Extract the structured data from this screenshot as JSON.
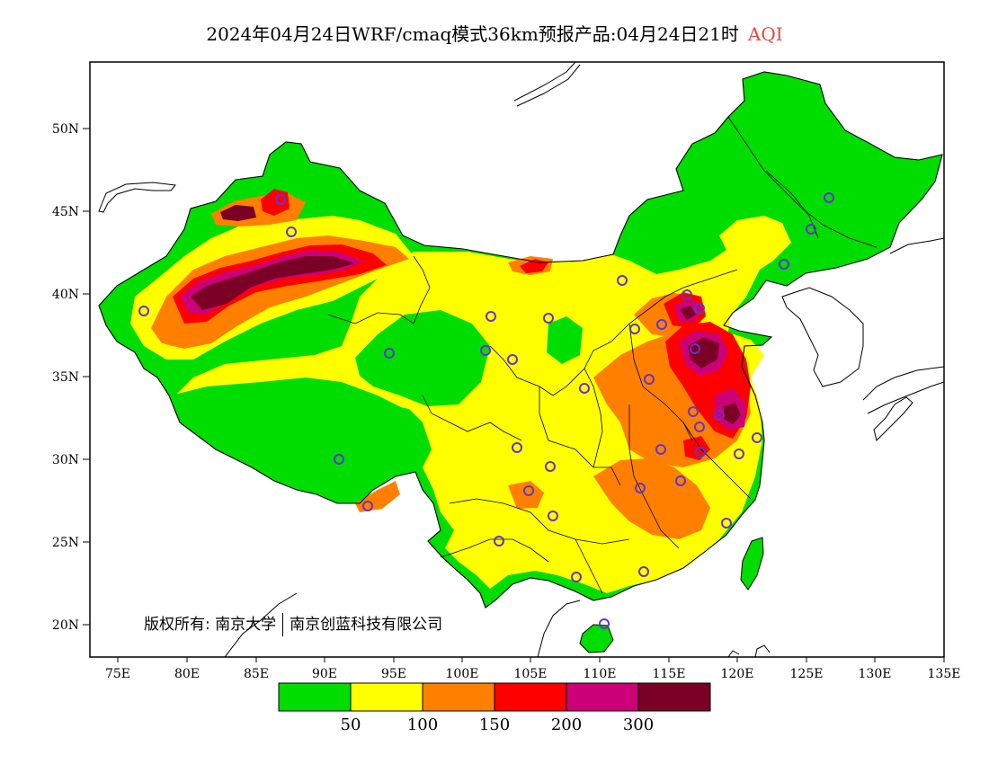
{
  "title": {
    "main": "2024年04月24日WRF/cmaq模式36km预报产品:04月24日21时",
    "variable": "AQI",
    "variable_color": "#e8443c"
  },
  "axes": {
    "lat_ticks": [
      "50N",
      "45N",
      "40N",
      "35N",
      "30N",
      "25N",
      "20N"
    ],
    "lon_ticks": [
      "75E",
      "80E",
      "85E",
      "90E",
      "95E",
      "100E",
      "105E",
      "110E",
      "115E",
      "120E",
      "125E",
      "130E",
      "135E"
    ]
  },
  "colorbar": {
    "colors": [
      "#00dd00",
      "#ffff00",
      "#ff8000",
      "#ff0000",
      "#cc0077",
      "#7a0025"
    ],
    "labels": [
      "50",
      "100",
      "150",
      "200",
      "300"
    ]
  },
  "copyright": {
    "part1": "版权所有: 南京大学",
    "part2": "南京创蓝科技有限公司"
  },
  "map": {
    "ocean_color": "#ffffff",
    "station_marker_color": "#6633cc"
  }
}
